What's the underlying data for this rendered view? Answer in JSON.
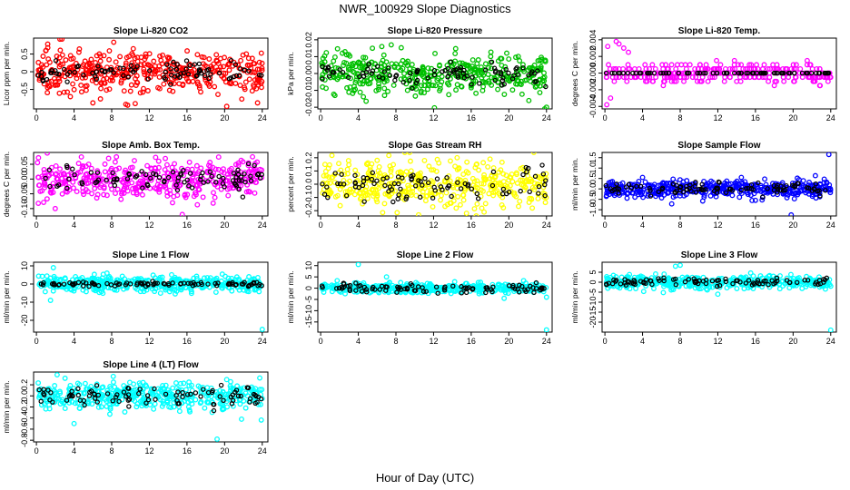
{
  "figure": {
    "title": "NWR_100929  Slope Diagnostics",
    "xlabel": "Hour of Day (UTC)"
  },
  "chart_data": [
    {
      "type": "scatter",
      "title": "Slope Li-820 CO2",
      "ylabel": "Licor ppm per min.",
      "xlim": [
        -0.3,
        24.6
      ],
      "xticks": [
        0,
        4,
        8,
        12,
        16,
        20,
        24
      ],
      "ylim": [
        -1.05,
        0.95
      ],
      "yticks": [
        -0.5,
        0,
        0.5
      ],
      "yticklabels": [
        "-0.5",
        "0",
        "0.5"
      ],
      "series_color": "#ff0000",
      "series_sd": 0.28,
      "series_n": 420,
      "black_sd": 0.13,
      "black_n": 90,
      "outliers": [
        [
          1.2,
          0.78
        ],
        [
          2.5,
          0.92
        ],
        [
          6.0,
          -0.88
        ],
        [
          9.5,
          -0.92
        ],
        [
          10.0,
          -0.55
        ],
        [
          10.5,
          -0.9
        ],
        [
          23.5,
          -0.88
        ]
      ]
    },
    {
      "type": "scatter",
      "title": "Slope Li-820 Pressure",
      "ylabel": "kPa per min.",
      "xlim": [
        -0.3,
        24.6
      ],
      "xticks": [
        0,
        4,
        8,
        12,
        16,
        20,
        24
      ],
      "ylim": [
        -0.021,
        0.021
      ],
      "yticks": [
        -0.02,
        -0.01,
        0.0,
        0.01,
        0.02
      ],
      "yticklabels": [
        "-0.02",
        "-0.01",
        "0.00",
        "0.01",
        "0.02"
      ],
      "series_color": "#00c000",
      "series_sd": 0.0062,
      "series_n": 420,
      "black_sd": 0.0035,
      "black_n": 90,
      "outliers": [
        [
          5.5,
          0.015
        ],
        [
          6.5,
          0.016
        ],
        [
          7.5,
          0.017
        ],
        [
          24.0,
          -0.02
        ]
      ]
    },
    {
      "type": "scatter",
      "title": "Slope Li-820 Temp.",
      "ylabel": "degrees C per min.",
      "xlim": [
        -0.3,
        24.6
      ],
      "xticks": [
        0,
        4,
        8,
        12,
        16,
        20,
        24
      ],
      "ylim": [
        -0.0043,
        0.0042
      ],
      "yticks": [
        -0.004,
        -0.002,
        0.0,
        0.002,
        0.004
      ],
      "yticklabels": [
        "-0.004",
        "-0.002",
        "0.000",
        "0.002",
        "0.004"
      ],
      "series_color": "#ff00ff",
      "series_sd": 0.0006,
      "series_n": 300,
      "black_sd": 0.0,
      "black_n": 80,
      "quantum": 0.0005,
      "outliers": [
        [
          0.2,
          -0.0038
        ],
        [
          0.6,
          -0.003
        ],
        [
          1.2,
          0.0038
        ],
        [
          1.5,
          0.0035
        ],
        [
          2.0,
          0.003
        ],
        [
          2.5,
          0.0025
        ],
        [
          0.3,
          0.0032
        ]
      ]
    },
    {
      "type": "scatter",
      "title": "Slope Amb. Box Temp.",
      "ylabel": "degrees C per min.",
      "xlim": [
        -0.3,
        24.6
      ],
      "xticks": [
        0,
        4,
        8,
        12,
        16,
        20,
        24
      ],
      "ylim": [
        -0.125,
        0.09
      ],
      "yticks": [
        -0.1,
        -0.05,
        0.0,
        0.05
      ],
      "yticklabels": [
        "-0.10",
        "-0.05",
        "0.00",
        "0.05"
      ],
      "series_color": "#ff00ff",
      "series_sd": 0.034,
      "series_n": 420,
      "black_sd": 0.02,
      "black_n": 90,
      "outliers": [
        [
          15.5,
          -0.12
        ],
        [
          2.0,
          -0.1
        ],
        [
          8.5,
          0.075
        ]
      ]
    },
    {
      "type": "scatter",
      "title": "Slope Gas Stream RH",
      "ylabel": "percent per min.",
      "xlim": [
        -0.3,
        24.6
      ],
      "xticks": [
        0,
        4,
        8,
        12,
        16,
        20,
        24
      ],
      "ylim": [
        -0.24,
        0.24
      ],
      "yticks": [
        -0.2,
        -0.1,
        0.0,
        0.1,
        0.2
      ],
      "yticklabels": [
        "-0.2",
        "-0.1",
        "0.0",
        "0.1",
        "0.2"
      ],
      "series_color": "#ffff00",
      "series_sd": 0.08,
      "series_n": 420,
      "black_sd": 0.06,
      "black_n": 90,
      "outliers": [
        [
          6.0,
          0.18
        ],
        [
          14.5,
          0.2
        ],
        [
          15.5,
          -0.22
        ],
        [
          18.0,
          0.19
        ]
      ]
    },
    {
      "type": "scatter",
      "title": "Slope Sample Flow",
      "ylabel": "ml/min per min.",
      "xlim": [
        -0.3,
        24.6
      ],
      "xticks": [
        0,
        4,
        8,
        12,
        16,
        20,
        24
      ],
      "ylim": [
        -1.3,
        1.75
      ],
      "yticks": [
        -1.0,
        -0.5,
        0.0,
        0.5,
        1.0,
        1.5
      ],
      "yticklabels": [
        "-1.0",
        "-0.5",
        "0.0",
        "0.5",
        "1.0",
        "1.5"
      ],
      "series_color": "#0000ff",
      "series_sd": 0.2,
      "series_n": 420,
      "black_sd": 0.15,
      "black_n": 90,
      "outliers": [
        [
          4.0,
          0.55
        ],
        [
          14.5,
          0.55
        ],
        [
          16.0,
          -0.55
        ],
        [
          19.8,
          -1.25
        ],
        [
          23.8,
          1.65
        ]
      ]
    },
    {
      "type": "scatter",
      "title": "Slope Line 1 Flow",
      "ylabel": "ml/min per min.",
      "xlim": [
        -0.3,
        24.6
      ],
      "xticks": [
        0,
        4,
        8,
        12,
        16,
        20,
        24
      ],
      "ylim": [
        -26.5,
        12
      ],
      "yticks": [
        -20,
        -10,
        0,
        10
      ],
      "yticklabels": [
        "-20",
        "-10",
        "0",
        "10"
      ],
      "series_color": "#00ffff",
      "series_sd": 2.2,
      "series_n": 420,
      "black_sd": 0.5,
      "black_n": 90,
      "outliers": [
        [
          1.5,
          -9.0
        ],
        [
          1.8,
          9.0
        ],
        [
          7.5,
          6.0
        ],
        [
          24.0,
          -25.0
        ]
      ]
    },
    {
      "type": "scatter",
      "title": "Slope Line 2 Flow",
      "ylabel": "ml/min per min.",
      "xlim": [
        -0.3,
        24.6
      ],
      "xticks": [
        0,
        4,
        8,
        12,
        16,
        20,
        24
      ],
      "ylim": [
        -19.5,
        11.5
      ],
      "yticks": [
        -15,
        -10,
        -5,
        0,
        5,
        10
      ],
      "yticklabels": [
        "-15",
        "-10",
        "-5",
        "0",
        "5",
        "10"
      ],
      "series_color": "#00ffff",
      "series_sd": 1.1,
      "series_n": 420,
      "black_sd": 1.0,
      "black_n": 90,
      "outliers": [
        [
          4.0,
          10.5
        ],
        [
          7.0,
          5.0
        ],
        [
          24.0,
          -18.5
        ],
        [
          19.5,
          -4.5
        ],
        [
          24.0,
          -4.0
        ]
      ]
    },
    {
      "type": "scatter",
      "title": "Slope Line 3 Flow",
      "ylabel": "ml/min per min.",
      "xlim": [
        -0.3,
        24.6
      ],
      "xticks": [
        0,
        4,
        8,
        12,
        16,
        20,
        24
      ],
      "ylim": [
        -25.0,
        10.0
      ],
      "yticks": [
        -20,
        -15,
        -10,
        -5,
        0,
        5
      ],
      "yticklabels": [
        "-20",
        "-15",
        "-10",
        "-5",
        "0",
        "5"
      ],
      "series_color": "#00ffff",
      "series_sd": 1.6,
      "series_n": 420,
      "black_sd": 1.0,
      "black_n": 90,
      "outliers": [
        [
          7.5,
          8.0
        ],
        [
          8.0,
          8.5
        ],
        [
          12.0,
          -6.0
        ],
        [
          24.0,
          -24.0
        ],
        [
          24.0,
          -2.0
        ]
      ]
    },
    {
      "type": "scatter",
      "title": "Slope Line 4 (LT) Flow",
      "ylabel": "ml/min per min.",
      "xlim": [
        -0.3,
        24.6
      ],
      "xticks": [
        0,
        4,
        8,
        12,
        16,
        20,
        24
      ],
      "ylim": [
        -0.83,
        0.43
      ],
      "yticks": [
        -0.8,
        -0.6,
        -0.4,
        -0.2,
        0.0,
        0.2
      ],
      "yticklabels": [
        "-0.8",
        "-0.6",
        "-0.4",
        "-0.2",
        "0.0",
        "0.2"
      ],
      "series_color": "#00ffff",
      "series_sd": 0.12,
      "series_n": 420,
      "black_sd": 0.1,
      "black_n": 90,
      "outliers": [
        [
          2.2,
          0.38
        ],
        [
          4.0,
          -0.5
        ],
        [
          19.2,
          -0.78
        ],
        [
          21.8,
          -0.42
        ]
      ]
    }
  ]
}
